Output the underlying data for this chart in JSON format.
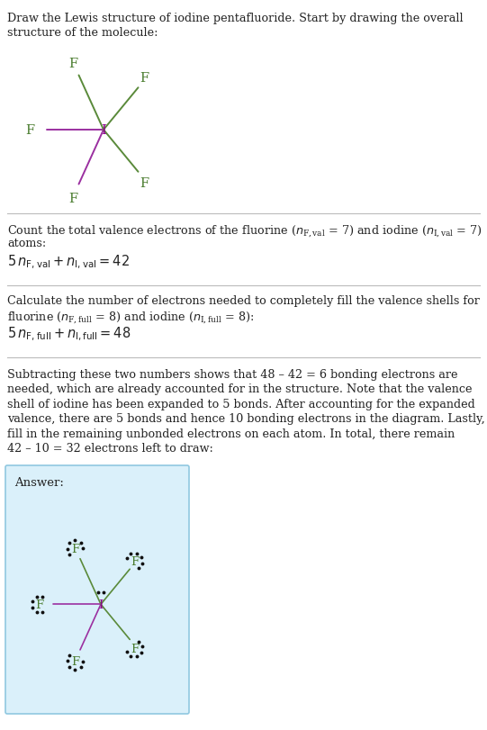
{
  "bg_color": "#ffffff",
  "answer_bg_color": "#daf0fa",
  "answer_border_color": "#90c8e0",
  "F_color": "#4a7c2f",
  "I_color": "#8B008B",
  "bond_green": "#5a8a3a",
  "bond_purple": "#9b30a0",
  "text_color": "#222222",
  "title_line1": "Draw the Lewis structure of iodine pentafluoride. Start by drawing the overall",
  "title_line2": "structure of the molecule:",
  "s1_line1": "Count the total valence electrons of the fluorine (",
  "s1_line2": "atoms:",
  "s2_line1": "Calculate the number of electrons needed to completely fill the valence shells for",
  "s2_line2_a": "fluorine (",
  "s2_line2_b": " = 8) and iodine (",
  "s2_line2_c": " = 8):",
  "s3_para": "Subtracting these two numbers shows that 48 – 42 = 6 bonding electrons are\nneeded, which are already accounted for in the structure. Note that the valence\nshell of iodine has been expanded to 5 bonds. After accounting for the expanded\nvalence, there are 5 bonds and hence 10 bonding electrons in the diagram. Lastly,\nfill in the remaining unbonded electrons on each atom. In total, there remain\n42 – 10 = 32 electrons left to draw:",
  "answer_label": "Answer:"
}
